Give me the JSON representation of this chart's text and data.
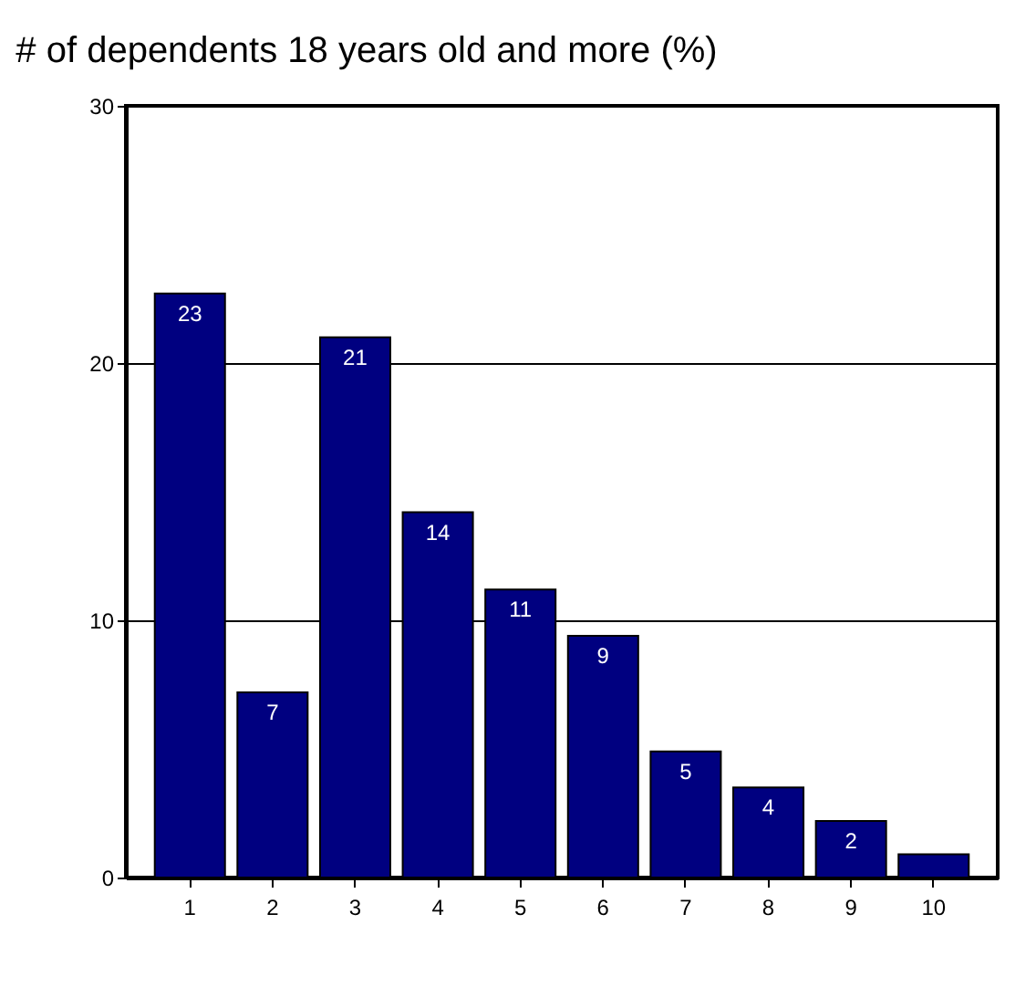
{
  "chart_data": {
    "type": "bar",
    "title": "# of dependents 18 years old and more (%)",
    "categories": [
      "1",
      "2",
      "3",
      "4",
      "5",
      "6",
      "7",
      "8",
      "9",
      "10"
    ],
    "values": [
      22.7,
      7.2,
      21.0,
      14.2,
      11.2,
      9.4,
      4.9,
      3.5,
      2.2,
      0.9
    ],
    "value_labels": [
      "23",
      "7",
      "21",
      "14",
      "11",
      "9",
      "5",
      "4",
      "2",
      null
    ],
    "color": "#000080",
    "ylim": [
      0,
      30
    ],
    "yticks": [
      0,
      10,
      20,
      30
    ],
    "grid": "y"
  }
}
